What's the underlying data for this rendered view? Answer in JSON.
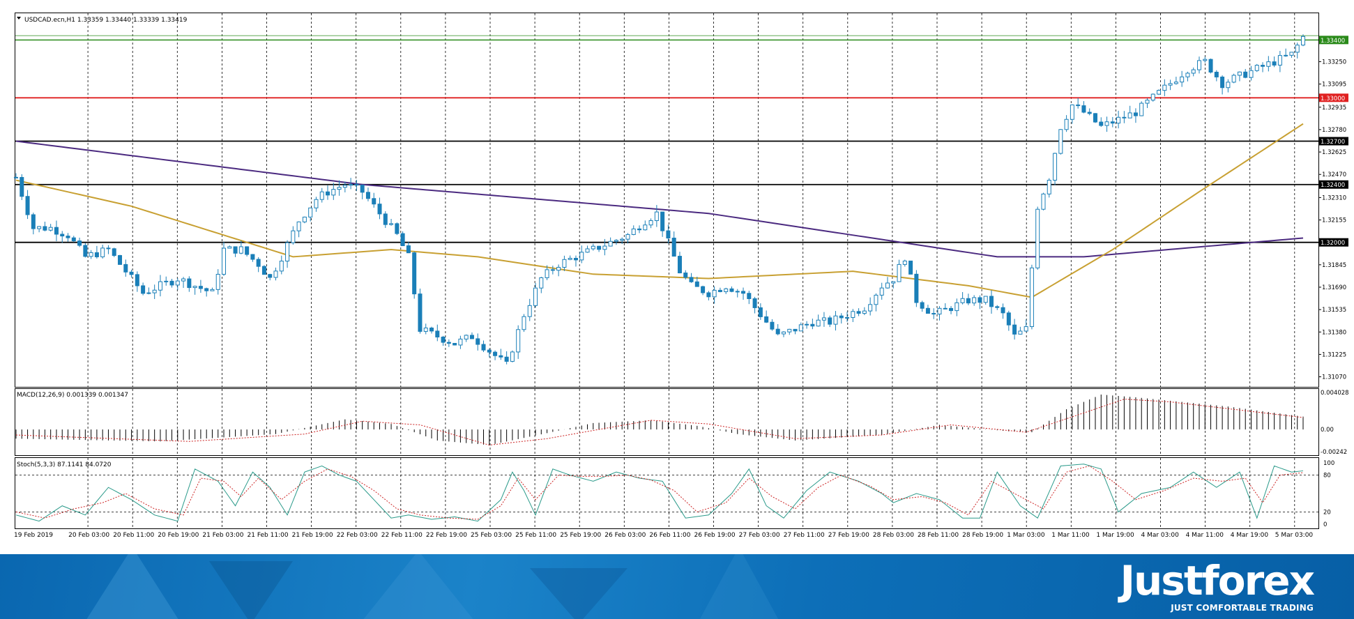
{
  "header": {
    "symbol_line": "USDCAD.ecn,H1  1.33359 1.33440 1.33339 1.33419",
    "macd_line": "MACD(12,26,9) 0.001339 0.001347",
    "stoch_line": "Stoch(5,3,3) 87.1141 84.0720"
  },
  "price_axis": {
    "ticks": [
      "1.33250",
      "1.33095",
      "1.32935",
      "1.32780",
      "1.32625",
      "1.32470",
      "1.32310",
      "1.32155",
      "1.31845",
      "1.31690",
      "1.31535",
      "1.31380",
      "1.31225",
      "1.31070"
    ],
    "level_tags": [
      "1.33400",
      "1.33000",
      "1.32700",
      "1.32400",
      "1.32000"
    ]
  },
  "macd_axis": {
    "ticks": [
      "0.004028",
      "0.00",
      "-0.00242"
    ]
  },
  "stoch_axis": {
    "ticks": [
      "100",
      "80",
      "20",
      "0"
    ]
  },
  "time_axis": {
    "labels": [
      "19 Feb 2019",
      "20 Feb 03:00",
      "20 Feb 11:00",
      "20 Feb 19:00",
      "21 Feb 03:00",
      "21 Feb 11:00",
      "21 Feb 19:00",
      "22 Feb 03:00",
      "22 Feb 11:00",
      "22 Feb 19:00",
      "25 Feb 03:00",
      "25 Feb 11:00",
      "25 Feb 19:00",
      "26 Feb 03:00",
      "26 Feb 11:00",
      "26 Feb 19:00",
      "27 Feb 03:00",
      "27 Feb 11:00",
      "27 Feb 19:00",
      "28 Feb 03:00",
      "28 Feb 11:00",
      "28 Feb 19:00",
      "1 Mar 03:00",
      "1 Mar 11:00",
      "1 Mar 19:00",
      "4 Mar 03:00",
      "4 Mar 11:00",
      "4 Mar 19:00",
      "5 Mar 03:00"
    ]
  },
  "brand": {
    "name": "Justforex",
    "slogan": "JUST COMFORTABLE TRADING"
  },
  "colors": {
    "candle": "#1a7fb8",
    "ma_slow": "#4b2a80",
    "ma_fast": "#c8a032",
    "level_green": "#2a8a1a",
    "level_red": "#e02020",
    "level_black": "#000000",
    "signal": "#cc2222"
  },
  "chart_data": {
    "type": "candlestick",
    "symbol": "USDCAD.ecn",
    "timeframe": "H1",
    "ylim": [
      1.3101,
      1.3358
    ],
    "levels": [
      {
        "price": 1.334,
        "color": "green"
      },
      {
        "price": 1.33,
        "color": "red"
      },
      {
        "price": 1.327,
        "color": "black"
      },
      {
        "price": 1.324,
        "color": "black"
      },
      {
        "price": 1.32,
        "color": "black"
      }
    ],
    "price_path": [
      [
        0,
        1.3245
      ],
      [
        3,
        1.321
      ],
      [
        6,
        1.321
      ],
      [
        9,
        1.3205
      ],
      [
        12,
        1.319
      ],
      [
        16,
        1.3195
      ],
      [
        19,
        1.318
      ],
      [
        22,
        1.3165
      ],
      [
        25,
        1.317
      ],
      [
        28,
        1.3175
      ],
      [
        31,
        1.317
      ],
      [
        34,
        1.3165
      ],
      [
        36,
        1.3195
      ],
      [
        39,
        1.3195
      ],
      [
        42,
        1.3185
      ],
      [
        44,
        1.3175
      ],
      [
        46,
        1.319
      ],
      [
        49,
        1.3215
      ],
      [
        52,
        1.323
      ],
      [
        54,
        1.3235
      ],
      [
        57,
        1.324
      ],
      [
        60,
        1.3235
      ],
      [
        63,
        1.322
      ],
      [
        66,
        1.3205
      ],
      [
        68,
        1.319
      ],
      [
        70,
        1.314
      ],
      [
        73,
        1.3135
      ],
      [
        76,
        1.313
      ],
      [
        79,
        1.3135
      ],
      [
        82,
        1.3125
      ],
      [
        85,
        1.3115
      ],
      [
        88,
        1.315
      ],
      [
        91,
        1.3175
      ],
      [
        94,
        1.3185
      ],
      [
        97,
        1.319
      ],
      [
        100,
        1.3195
      ],
      [
        103,
        1.32
      ],
      [
        106,
        1.3205
      ],
      [
        109,
        1.3215
      ],
      [
        111,
        1.322
      ],
      [
        113,
        1.32
      ],
      [
        115,
        1.318
      ],
      [
        117,
        1.317
      ],
      [
        120,
        1.3165
      ],
      [
        123,
        1.317
      ],
      [
        126,
        1.3165
      ],
      [
        129,
        1.315
      ],
      [
        132,
        1.3135
      ],
      [
        135,
        1.314
      ],
      [
        138,
        1.3145
      ],
      [
        141,
        1.3145
      ],
      [
        144,
        1.315
      ],
      [
        147,
        1.3155
      ],
      [
        150,
        1.317
      ],
      [
        152,
        1.3175
      ],
      [
        154,
        1.319
      ],
      [
        156,
        1.316
      ],
      [
        159,
        1.315
      ],
      [
        162,
        1.3155
      ],
      [
        165,
        1.316
      ],
      [
        168,
        1.316
      ],
      [
        171,
        1.315
      ],
      [
        173,
        1.3135
      ],
      [
        175,
        1.314
      ],
      [
        177,
        1.3225
      ],
      [
        179,
        1.3245
      ],
      [
        181,
        1.328
      ],
      [
        183,
        1.3295
      ],
      [
        185,
        1.329
      ],
      [
        188,
        1.328
      ],
      [
        191,
        1.3285
      ],
      [
        194,
        1.329
      ],
      [
        197,
        1.33
      ],
      [
        200,
        1.331
      ],
      [
        203,
        1.332
      ],
      [
        206,
        1.3325
      ],
      [
        209,
        1.331
      ],
      [
        212,
        1.3315
      ],
      [
        215,
        1.332
      ],
      [
        218,
        1.3325
      ],
      [
        221,
        1.333
      ],
      [
        223,
        1.3342
      ]
    ],
    "ma_slow": [
      [
        0,
        1.327
      ],
      [
        60,
        1.324
      ],
      [
        120,
        1.322
      ],
      [
        170,
        1.319
      ],
      [
        185,
        1.319
      ],
      [
        223,
        1.3203
      ]
    ],
    "ma_fast": [
      [
        0,
        1.3243
      ],
      [
        20,
        1.3225
      ],
      [
        40,
        1.32
      ],
      [
        48,
        1.319
      ],
      [
        65,
        1.3195
      ],
      [
        80,
        1.319
      ],
      [
        100,
        1.3178
      ],
      [
        120,
        1.3175
      ],
      [
        145,
        1.318
      ],
      [
        165,
        1.317
      ],
      [
        176,
        1.3162
      ],
      [
        190,
        1.3195
      ],
      [
        205,
        1.3235
      ],
      [
        223,
        1.3282
      ]
    ],
    "macd": {
      "ylim": [
        -0.00242,
        0.004028
      ],
      "histogram": [
        [
          0,
          -0.001
        ],
        [
          25,
          -0.0013
        ],
        [
          45,
          -0.0005
        ],
        [
          57,
          0.0011
        ],
        [
          65,
          0.0006
        ],
        [
          73,
          -0.0012
        ],
        [
          82,
          -0.0017
        ],
        [
          92,
          -0.0004
        ],
        [
          100,
          0.0007
        ],
        [
          110,
          0.001
        ],
        [
          118,
          0.0004
        ],
        [
          125,
          -0.0005
        ],
        [
          135,
          -0.0012
        ],
        [
          150,
          -0.0006
        ],
        [
          160,
          0.0005
        ],
        [
          172,
          -0.0002
        ],
        [
          176,
          -0.0003
        ],
        [
          182,
          0.0022
        ],
        [
          188,
          0.0038
        ],
        [
          194,
          0.0035
        ],
        [
          210,
          0.0025
        ],
        [
          223,
          0.0014
        ]
      ],
      "signal": [
        [
          0,
          -0.0006
        ],
        [
          30,
          -0.0013
        ],
        [
          50,
          -0.0005
        ],
        [
          60,
          0.0009
        ],
        [
          70,
          0.0005
        ],
        [
          82,
          -0.0017
        ],
        [
          92,
          -0.001
        ],
        [
          110,
          0.001
        ],
        [
          120,
          0.0006
        ],
        [
          135,
          -0.001
        ],
        [
          150,
          -0.0006
        ],
        [
          162,
          0.0005
        ],
        [
          175,
          -0.0003
        ],
        [
          185,
          0.0018
        ],
        [
          192,
          0.0033
        ],
        [
          200,
          0.003
        ],
        [
          223,
          0.0013
        ]
      ]
    },
    "stochastic": {
      "ylim": [
        0,
        100
      ],
      "levels": [
        80,
        20
      ],
      "k": [
        [
          0,
          15
        ],
        [
          4,
          5
        ],
        [
          8,
          30
        ],
        [
          12,
          15
        ],
        [
          16,
          60
        ],
        [
          20,
          40
        ],
        [
          24,
          15
        ],
        [
          28,
          5
        ],
        [
          31,
          90
        ],
        [
          35,
          70
        ],
        [
          38,
          30
        ],
        [
          41,
          85
        ],
        [
          44,
          60
        ],
        [
          47,
          15
        ],
        [
          50,
          85
        ],
        [
          53,
          95
        ],
        [
          56,
          80
        ],
        [
          59,
          70
        ],
        [
          62,
          40
        ],
        [
          65,
          10
        ],
        [
          68,
          15
        ],
        [
          72,
          8
        ],
        [
          76,
          12
        ],
        [
          80,
          5
        ],
        [
          84,
          40
        ],
        [
          86,
          85
        ],
        [
          88,
          55
        ],
        [
          90,
          15
        ],
        [
          93,
          90
        ],
        [
          96,
          80
        ],
        [
          100,
          70
        ],
        [
          104,
          85
        ],
        [
          108,
          75
        ],
        [
          112,
          70
        ],
        [
          116,
          10
        ],
        [
          120,
          15
        ],
        [
          124,
          50
        ],
        [
          127,
          90
        ],
        [
          130,
          30
        ],
        [
          133,
          10
        ],
        [
          137,
          55
        ],
        [
          141,
          85
        ],
        [
          146,
          70
        ],
        [
          150,
          50
        ],
        [
          152,
          35
        ],
        [
          156,
          50
        ],
        [
          160,
          40
        ],
        [
          164,
          10
        ],
        [
          167,
          10
        ],
        [
          170,
          85
        ],
        [
          174,
          30
        ],
        [
          177,
          10
        ],
        [
          181,
          95
        ],
        [
          185,
          98
        ],
        [
          188,
          90
        ],
        [
          191,
          20
        ],
        [
          195,
          50
        ],
        [
          200,
          60
        ],
        [
          204,
          85
        ],
        [
          208,
          60
        ],
        [
          212,
          85
        ],
        [
          215,
          10
        ],
        [
          218,
          95
        ],
        [
          221,
          85
        ],
        [
          223,
          87
        ]
      ],
      "d": [
        [
          0,
          20
        ],
        [
          5,
          10
        ],
        [
          10,
          25
        ],
        [
          15,
          35
        ],
        [
          19,
          50
        ],
        [
          24,
          25
        ],
        [
          29,
          15
        ],
        [
          32,
          75
        ],
        [
          36,
          70
        ],
        [
          39,
          45
        ],
        [
          42,
          75
        ],
        [
          46,
          40
        ],
        [
          50,
          70
        ],
        [
          54,
          90
        ],
        [
          58,
          78
        ],
        [
          62,
          55
        ],
        [
          66,
          25
        ],
        [
          70,
          15
        ],
        [
          75,
          10
        ],
        [
          80,
          8
        ],
        [
          84,
          30
        ],
        [
          87,
          75
        ],
        [
          90,
          40
        ],
        [
          94,
          80
        ],
        [
          98,
          78
        ],
        [
          102,
          78
        ],
        [
          106,
          80
        ],
        [
          110,
          72
        ],
        [
          114,
          55
        ],
        [
          118,
          20
        ],
        [
          123,
          35
        ],
        [
          127,
          75
        ],
        [
          131,
          45
        ],
        [
          135,
          25
        ],
        [
          139,
          60
        ],
        [
          143,
          80
        ],
        [
          148,
          62
        ],
        [
          152,
          40
        ],
        [
          157,
          45
        ],
        [
          161,
          35
        ],
        [
          165,
          15
        ],
        [
          169,
          70
        ],
        [
          174,
          45
        ],
        [
          178,
          25
        ],
        [
          182,
          85
        ],
        [
          186,
          95
        ],
        [
          190,
          70
        ],
        [
          194,
          40
        ],
        [
          199,
          55
        ],
        [
          204,
          75
        ],
        [
          209,
          70
        ],
        [
          213,
          75
        ],
        [
          216,
          35
        ],
        [
          219,
          80
        ],
        [
          223,
          84
        ]
      ]
    }
  }
}
